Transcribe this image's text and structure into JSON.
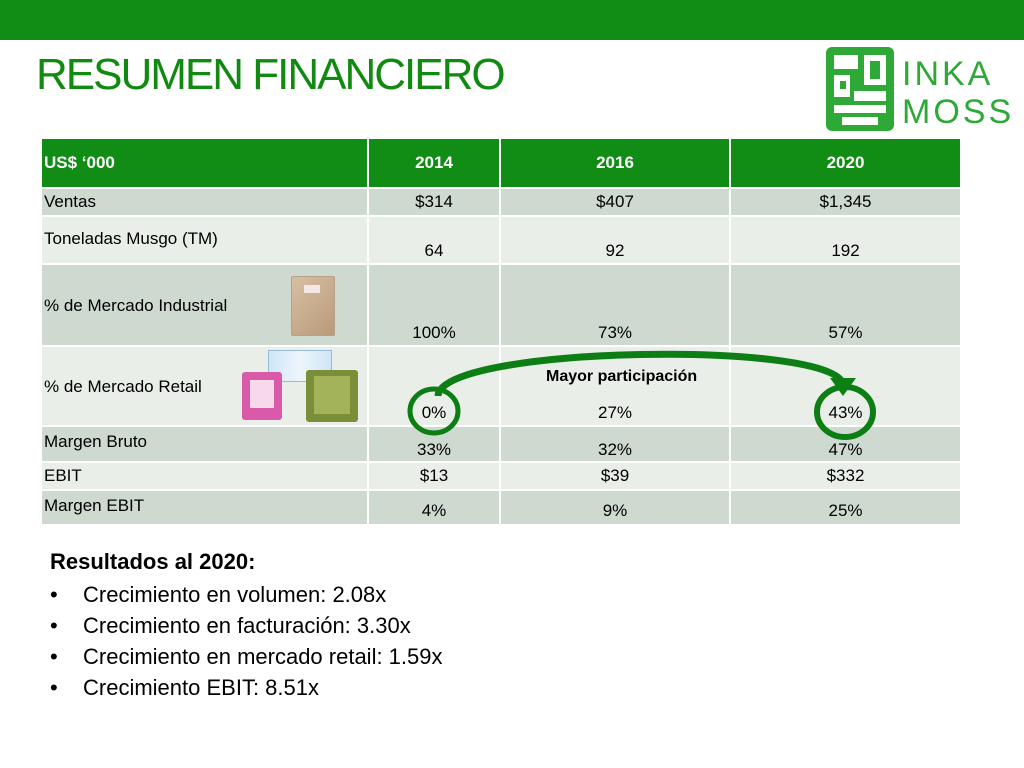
{
  "slide": {
    "title": "RESUMEN FINANCIERO",
    "logo_line1": "INKA",
    "logo_line2": "MOSS"
  },
  "colors": {
    "brand_green": "#118d15",
    "title_green": "#108a10",
    "row_dark": "#ced9d0",
    "row_light": "#e9eee9"
  },
  "table": {
    "headers": [
      "US$ ‘000",
      "2014",
      "2016",
      "2020"
    ],
    "rows": [
      {
        "label": "Ventas",
        "values": [
          "$314",
          "$407",
          "$1,345"
        ]
      },
      {
        "label": "Toneladas Musgo (TM)",
        "values": [
          "64",
          "92",
          "192"
        ]
      },
      {
        "label": "% de Mercado Industrial",
        "values": [
          "100%",
          "73%",
          "57%"
        ]
      },
      {
        "label": "% de Mercado Retail",
        "values": [
          "0%",
          "27%",
          "43%"
        ]
      },
      {
        "label": "Margen Bruto",
        "values": [
          "33%",
          "32%",
          "47%"
        ]
      },
      {
        "label": "EBIT",
        "values": [
          "$13",
          "$39",
          "$332"
        ]
      },
      {
        "label": "Margen EBIT",
        "values": [
          "4%",
          "9%",
          "25%"
        ]
      }
    ],
    "annotation": "Mayor participación"
  },
  "results": {
    "title": "Resultados al 2020:",
    "bullet_char": "•",
    "items": [
      "Crecimiento en volumen: 2.08x",
      "Crecimiento en facturación: 3.30x",
      "Crecimiento en mercado retail: 1.59x",
      "Crecimiento EBIT: 8.51x"
    ]
  },
  "icons": {
    "logo": "inka-moss-logo",
    "industrial_product": "moss-bale-photo",
    "retail_products": "moss-retail-packages-photo"
  }
}
